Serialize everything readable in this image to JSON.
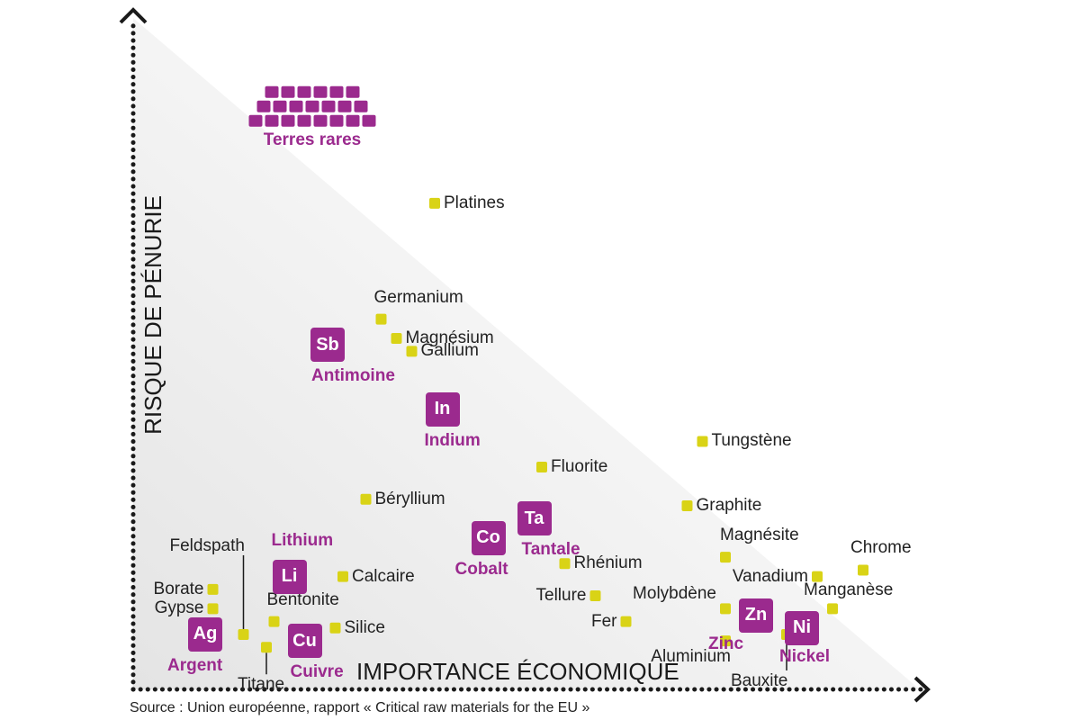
{
  "colors": {
    "major": "#9b2a8e",
    "minor": "#d9d316",
    "axis": "#1a1a1a",
    "text": "#222222"
  },
  "source": "Source : Union européenne, rapport « Critical raw materials for the EU »",
  "chart_data": {
    "type": "scatter",
    "title": "",
    "xlabel": "IMPORTANCE ÉCONOMIQUE",
    "ylabel": "RISQUE DE PÉNURIE",
    "xlim": [
      0,
      10
    ],
    "ylim": [
      0,
      10
    ],
    "grid": false,
    "legend": "none",
    "major": [
      {
        "name": "Terres rares",
        "symbol": "",
        "x": 2.2,
        "y": 8.8,
        "cluster": true
      },
      {
        "name": "Antimoine",
        "symbol": "Sb",
        "x": 2.4,
        "y": 5.2
      },
      {
        "name": "Indium",
        "symbol": "In",
        "x": 3.9,
        "y": 4.2
      },
      {
        "name": "Lithium",
        "symbol": "Li",
        "x": 1.9,
        "y": 1.6
      },
      {
        "name": "Cobalt",
        "symbol": "Co",
        "x": 4.5,
        "y": 2.2
      },
      {
        "name": "Tantale",
        "symbol": "Ta",
        "x": 5.1,
        "y": 2.5
      },
      {
        "name": "Argent",
        "symbol": "Ag",
        "x": 0.8,
        "y": 0.7
      },
      {
        "name": "Cuivre",
        "symbol": "Cu",
        "x": 2.1,
        "y": 0.6
      },
      {
        "name": "Zinc",
        "symbol": "Zn",
        "x": 8.0,
        "y": 1.0
      },
      {
        "name": "Nickel",
        "symbol": "Ni",
        "x": 8.6,
        "y": 0.8
      }
    ],
    "minor": [
      {
        "name": "Platines",
        "x": 3.8,
        "y": 7.4
      },
      {
        "name": "Germanium",
        "x": 3.1,
        "y": 5.6
      },
      {
        "name": "Magnésium",
        "x": 3.3,
        "y": 5.3
      },
      {
        "name": "Gallium",
        "x": 3.5,
        "y": 5.1
      },
      {
        "name": "Tungstène",
        "x": 7.3,
        "y": 3.7
      },
      {
        "name": "Fluorite",
        "x": 5.2,
        "y": 3.3
      },
      {
        "name": "Béryllium",
        "x": 2.9,
        "y": 2.8
      },
      {
        "name": "Graphite",
        "x": 7.1,
        "y": 2.7
      },
      {
        "name": "Magnésite",
        "x": 7.6,
        "y": 1.9
      },
      {
        "name": "Chrome",
        "x": 9.4,
        "y": 1.7
      },
      {
        "name": "Vanadium",
        "x": 8.8,
        "y": 1.6
      },
      {
        "name": "Rhénium",
        "x": 5.5,
        "y": 1.8
      },
      {
        "name": "Calcaire",
        "x": 2.6,
        "y": 1.6
      },
      {
        "name": "Feldspath",
        "x": 1.3,
        "y": 0.7
      },
      {
        "name": "Borate",
        "x": 0.9,
        "y": 1.4
      },
      {
        "name": "Gypse",
        "x": 0.9,
        "y": 1.1
      },
      {
        "name": "Bentonite",
        "x": 1.7,
        "y": 0.9
      },
      {
        "name": "Silice",
        "x": 2.5,
        "y": 0.8
      },
      {
        "name": "Titane",
        "x": 1.6,
        "y": 0.5
      },
      {
        "name": "Tellure",
        "x": 5.9,
        "y": 1.3
      },
      {
        "name": "Fer",
        "x": 6.3,
        "y": 0.9
      },
      {
        "name": "Molybdène",
        "x": 7.6,
        "y": 1.1
      },
      {
        "name": "Manganèse",
        "x": 9.0,
        "y": 1.1
      },
      {
        "name": "Aluminium",
        "x": 7.6,
        "y": 0.6
      },
      {
        "name": "Bauxite",
        "x": 8.4,
        "y": 0.7
      }
    ]
  }
}
